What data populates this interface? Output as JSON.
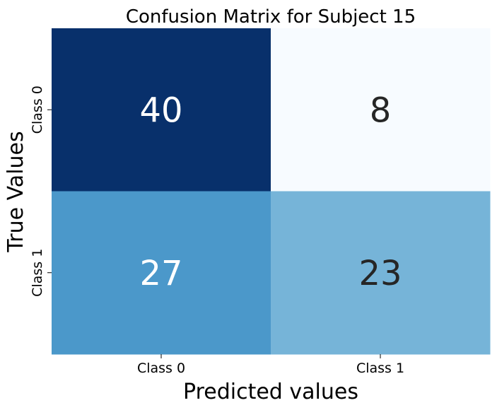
{
  "chart_data": {
    "type": "heatmap",
    "title": "Confusion Matrix for Subject 15",
    "xlabel": "Predicted values",
    "ylabel": "True Values",
    "x_categories": [
      "Class 0",
      "Class 1"
    ],
    "y_categories": [
      "Class 0",
      "Class 1"
    ],
    "values": [
      [
        40,
        8
      ],
      [
        27,
        23
      ]
    ],
    "colormap": "Blues",
    "color_range": [
      8,
      40
    ],
    "colorbar": false,
    "cell_colors": [
      [
        "#08306b",
        "#f7fbff"
      ],
      [
        "#4b98ca",
        "#76b4d8"
      ]
    ],
    "annotation_colors": [
      [
        "#ffffff",
        "#262626"
      ],
      [
        "#ffffff",
        "#262626"
      ]
    ]
  }
}
